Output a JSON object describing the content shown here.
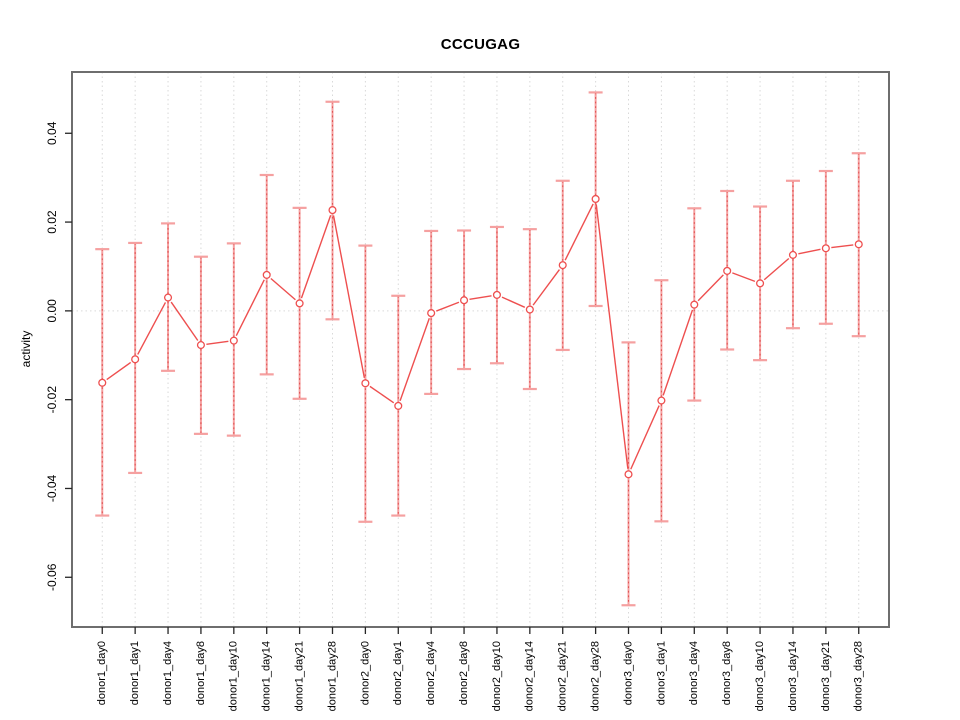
{
  "title": "CCCUGAG",
  "chart_data": {
    "type": "line",
    "title": "CCCUGAG",
    "xlabel": "",
    "ylabel": "activity",
    "legend": "none",
    "grid": "vertical-dotted",
    "zero_line": true,
    "point_style": "open-circle",
    "error_bars": true,
    "categories": [
      "donor1_day0",
      "donor1_day1",
      "donor1_day4",
      "donor1_day8",
      "donor1_day10",
      "donor1_day14",
      "donor1_day21",
      "donor1_day28",
      "donor2_day0",
      "donor2_day1",
      "donor2_day4",
      "donor2_day8",
      "donor2_day10",
      "donor2_day14",
      "donor2_day21",
      "donor2_day28",
      "donor3_day0",
      "donor3_day1",
      "donor3_day4",
      "donor3_day8",
      "donor3_day10",
      "donor3_day14",
      "donor3_day21",
      "donor3_day28"
    ],
    "series": [
      {
        "name": "activity",
        "values": [
          -0.0162,
          -0.0109,
          0.003,
          -0.0077,
          -0.0067,
          0.0081,
          0.0017,
          0.0227,
          -0.0163,
          -0.0214,
          -0.0005,
          0.0024,
          0.0036,
          0.0003,
          0.0103,
          0.0252,
          -0.0368,
          -0.0202,
          0.0014,
          0.009,
          0.0062,
          0.0126,
          0.0141,
          0.015
        ],
        "lower": [
          -0.0461,
          -0.0365,
          -0.0135,
          -0.0277,
          -0.0281,
          -0.0143,
          -0.0198,
          -0.0019,
          -0.0475,
          -0.0461,
          -0.0187,
          -0.0131,
          -0.0118,
          -0.0176,
          -0.0088,
          0.0011,
          -0.0663,
          -0.0474,
          -0.0202,
          -0.0087,
          -0.0111,
          -0.0039,
          -0.0029,
          -0.0057
        ],
        "upper": [
          0.0139,
          0.0153,
          0.0197,
          0.0122,
          0.0152,
          0.0306,
          0.0232,
          0.0471,
          0.0147,
          0.0034,
          0.018,
          0.0181,
          0.0189,
          0.0184,
          0.0293,
          0.0492,
          -0.0071,
          0.0069,
          0.0231,
          0.027,
          0.0235,
          0.0293,
          0.0315,
          0.0355
        ]
      }
    ],
    "y_ticks": [
      0.04,
      0.02,
      0,
      -0.02,
      -0.04,
      -0.06
    ],
    "y_tick_labels": [
      "0.04",
      "0.02",
      "0.00",
      "-0.02",
      "-0.04",
      "-0.06"
    ],
    "ylim": [
      -0.0712,
      0.0538
    ],
    "colors": {
      "line": "#ee4f4f",
      "point": "#ee4f4f",
      "point_fill": "#ffffff",
      "error_bar": "#f5a0a0",
      "error_bar_dots": "#e05555",
      "grid": "#d9d9d9",
      "zero_line": "#d9d9d9",
      "border": "#6e6e6e",
      "tick": "#262626",
      "text": "#000000",
      "background": "#ffffff"
    }
  }
}
